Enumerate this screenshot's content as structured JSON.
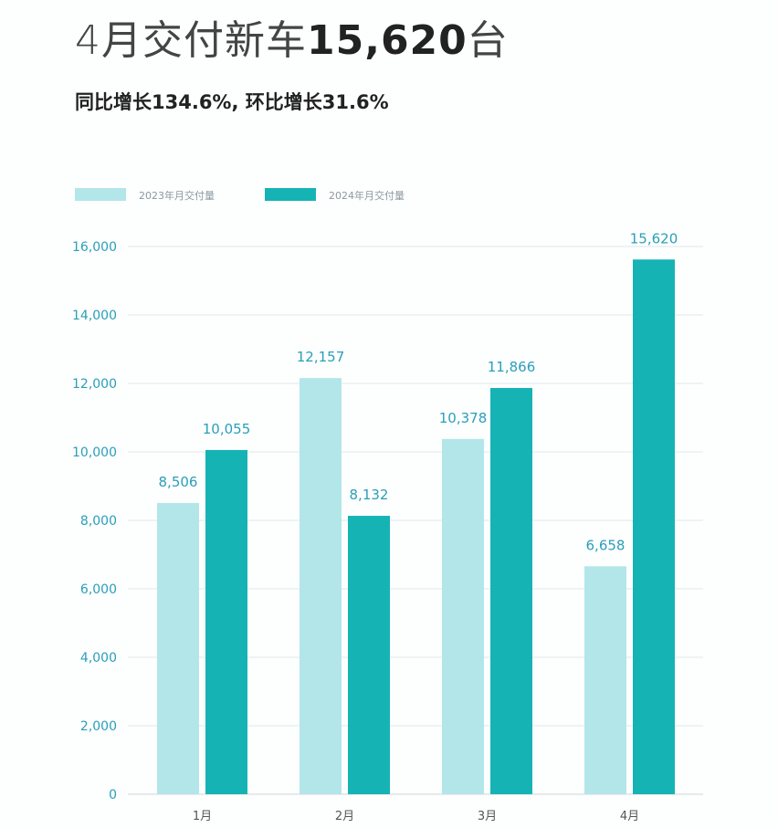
{
  "header": {
    "title_prefix": "4月交付新车",
    "title_number": "15,620",
    "title_suffix": "台",
    "subtitle": "同比增长134.6%, 环比增长31.6%"
  },
  "colors": {
    "series_2023": "#b3e6e9",
    "series_2024": "#16b3b5",
    "tick_text": "#2a9fb8",
    "data_label": "#2a9fb8",
    "grid": "#dfe8ec"
  },
  "chart_data": {
    "type": "bar",
    "categories": [
      "1月",
      "2月",
      "3月",
      "4月"
    ],
    "series": [
      {
        "name": "2023年月交付量",
        "values": [
          8506,
          12157,
          10378,
          6658
        ],
        "labels": [
          "8,506",
          "12,157",
          "10,378",
          "6,658"
        ]
      },
      {
        "name": "2024年月交付量",
        "values": [
          10055,
          8132,
          11866,
          15620
        ],
        "labels": [
          "10,055",
          "8,132",
          "11,866",
          "15,620"
        ]
      }
    ],
    "ylim": [
      0,
      16000
    ],
    "yticks": [
      0,
      2000,
      4000,
      6000,
      8000,
      10000,
      12000,
      14000,
      16000
    ],
    "ytick_labels": [
      "0",
      "2,000",
      "4,000",
      "6,000",
      "8,000",
      "10,000",
      "12,000",
      "14,000",
      "16,000"
    ],
    "grid": true,
    "legend": "top-left"
  }
}
